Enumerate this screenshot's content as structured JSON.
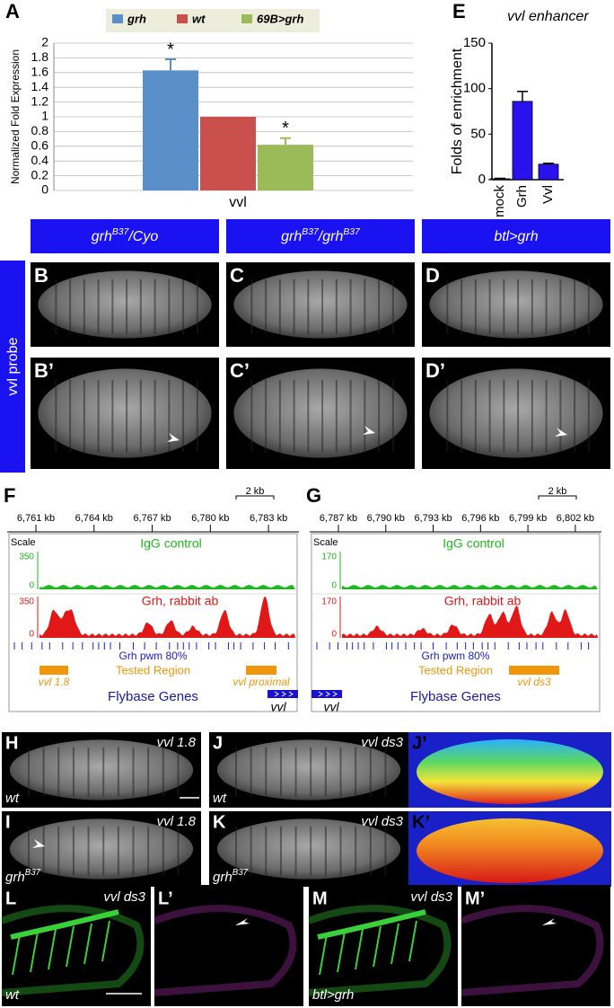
{
  "chart_data": [
    {
      "type": "bar",
      "ylabel": "Normalized Fold Expression",
      "categories": [
        "vvl"
      ],
      "series": [
        {
          "name": "grh",
          "color": "#5b8fc9",
          "values": [
            1.63
          ],
          "errors": [
            0.15
          ],
          "annotation": "*"
        },
        {
          "name": "wt",
          "color": "#c9504c",
          "values": [
            1.0
          ],
          "errors": [
            null
          ]
        },
        {
          "name": "69B>grh",
          "color": "#9bbb59",
          "values": [
            0.62
          ],
          "errors": [
            0.09
          ],
          "annotation": "*"
        }
      ],
      "ylim": [
        0,
        2
      ],
      "yticks": [
        0,
        0.2,
        0.4,
        0.6,
        0.8,
        1,
        1.2,
        1.4,
        1.6,
        1.8,
        2
      ],
      "grid": true
    },
    {
      "type": "bar",
      "title": "vvl enhancer",
      "ylabel": "Folds of enrichment",
      "categories": [
        "mock",
        "Grh",
        "Vvl"
      ],
      "values": [
        1,
        86,
        17
      ],
      "errors": [
        0.5,
        11,
        1
      ],
      "color": "#2a12ee",
      "ylim": [
        0,
        150
      ],
      "yticks": [
        0,
        50,
        100,
        150
      ],
      "grid": false
    }
  ],
  "figure": {
    "letters": {
      "a": "A",
      "e": "E",
      "b": "B",
      "c": "C",
      "d": "D",
      "b2": "B’",
      "c2": "C’",
      "d2": "D’",
      "f": "F",
      "g": "G",
      "h": "H",
      "i": "I",
      "j": "J",
      "k": "K",
      "j2": "J’",
      "k2": "K’",
      "l": "L",
      "l2": "L’",
      "m": "M",
      "m2": "M’"
    },
    "headers": [
      [
        "grh",
        "B37",
        "/Cyo"
      ],
      [
        "grh",
        "B37",
        "/grh",
        "B37"
      ],
      [
        "btl>grh"
      ]
    ],
    "side_label": "vvl probe",
    "tracks": [
      {
        "ticks": [
          "6,761 kb",
          "6,764 kb",
          "6,767 kb",
          "6,780 kb",
          "6,783 kb"
        ],
        "scalebar": "2 kb",
        "scale": "Scale",
        "igg": {
          "label": "IgG control",
          "max": "350",
          "min": "0"
        },
        "grh": {
          "label": "Grh, rabbit ab",
          "max": "350",
          "min": "0"
        },
        "pwm": "Grh pwm 80%",
        "tested": "Tested Region",
        "regions": [
          "vvl 1.8",
          "vvl proximal"
        ],
        "genes": "Flybase Genes",
        "gene": "vvl"
      },
      {
        "ticks": [
          "6,787 kb",
          "6,790 kb",
          "6,793 kb",
          "6,796 kb",
          "6,799 kb",
          "6,802 kb"
        ],
        "scalebar": "2 kb",
        "scale": "Scale",
        "igg": {
          "label": "IgG control",
          "max": "170",
          "min": "0"
        },
        "grh": {
          "label": "Grh, rabbit ab",
          "max": "170",
          "min": "0"
        },
        "pwm": "Grh pwm 80%",
        "tested": "Tested Region",
        "regions": [
          "vvl ds3"
        ],
        "genes": "Flybase Genes",
        "gene": "vvl"
      }
    ],
    "image_labels": {
      "h": [
        "vvl 1.8",
        "wt"
      ],
      "i": [
        "vvl 1.8",
        "grh",
        "B37"
      ],
      "j": [
        "vvl ds3",
        "wt"
      ],
      "k": [
        "vvl ds3",
        "grh",
        "B37"
      ],
      "l": [
        "vvl ds3",
        "wt"
      ],
      "m": [
        "vvl ds3",
        "btl>grh"
      ]
    }
  }
}
